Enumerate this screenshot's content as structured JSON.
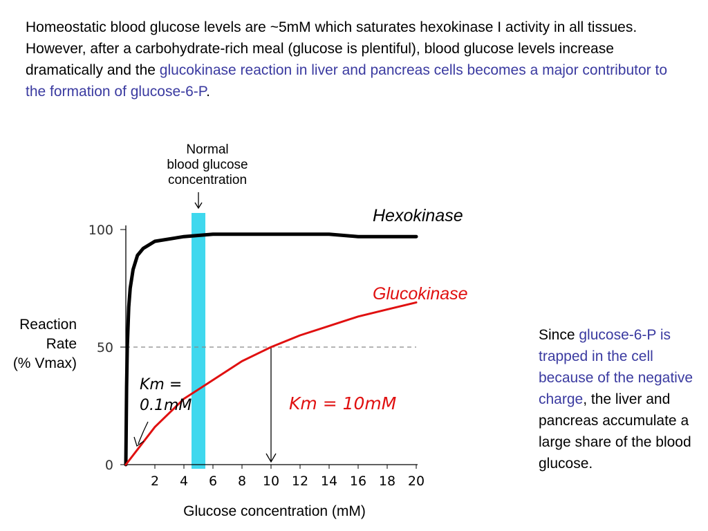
{
  "slide": {
    "intro": {
      "part1": "Homeostatic blood glucose levels are ~5mM which saturates hexokinase I activity in all tissues.  However, after a carbohydrate-rich meal (glucose is plentiful), blood glucose levels increase dramatically and the ",
      "highlight": "glucokinase reaction in liver and pancreas cells becomes a major contributor to the formation of glucose-6-P",
      "part2": "."
    },
    "side_note": {
      "part1": "Since ",
      "highlight": "glucose-6-P is trapped in the cell because of the negative charge",
      "part2": ", the liver and pancreas accumulate a large share of the blood glucose."
    },
    "colors": {
      "highlight": "#3a3aa0",
      "hexokinase": "#000000",
      "glucokinase": "#e01010",
      "normal_band": "#2ad4ec"
    }
  },
  "chart_data": {
    "type": "line",
    "xlabel": "Glucose concentration (mM)",
    "ylabel": [
      "Reaction",
      "Rate",
      "(% Vmax)"
    ],
    "xlim": [
      0,
      20
    ],
    "ylim": [
      0,
      100
    ],
    "x_ticks": [
      "2",
      "4",
      "6",
      "8",
      "10",
      "12",
      "14",
      "16",
      "18",
      "20"
    ],
    "y_ticks": [
      "0",
      "50",
      "100"
    ],
    "series": [
      {
        "name": "Hexokinase",
        "color": "#000000",
        "x": [
          0,
          0.05,
          0.1,
          0.2,
          0.3,
          0.5,
          0.8,
          1.2,
          2,
          4,
          6,
          10,
          14,
          16,
          20
        ],
        "y": [
          0,
          33,
          50,
          67,
          75,
          83,
          89,
          92,
          95,
          97,
          98,
          98,
          98,
          97,
          97
        ]
      },
      {
        "name": "Glucokinase",
        "color": "#e01010",
        "x": [
          0,
          1,
          2,
          3,
          4,
          5,
          6,
          7,
          8,
          9,
          10,
          12,
          14,
          16,
          18,
          20
        ],
        "y": [
          0,
          8,
          16,
          22,
          28,
          32,
          36,
          40,
          44,
          47,
          50,
          55,
          59,
          63,
          66,
          69
        ]
      }
    ],
    "normal_glucose": {
      "label": [
        "Normal",
        "blood glucose",
        "concentration"
      ],
      "x": 5
    },
    "reference_line": {
      "y": 50,
      "x_end": 20
    },
    "annotations": {
      "hexokinase_km": [
        "Km =",
        "0.1mM"
      ],
      "glucokinase_km": "Km = 10mM",
      "glucokinase_km_x": 10
    }
  }
}
